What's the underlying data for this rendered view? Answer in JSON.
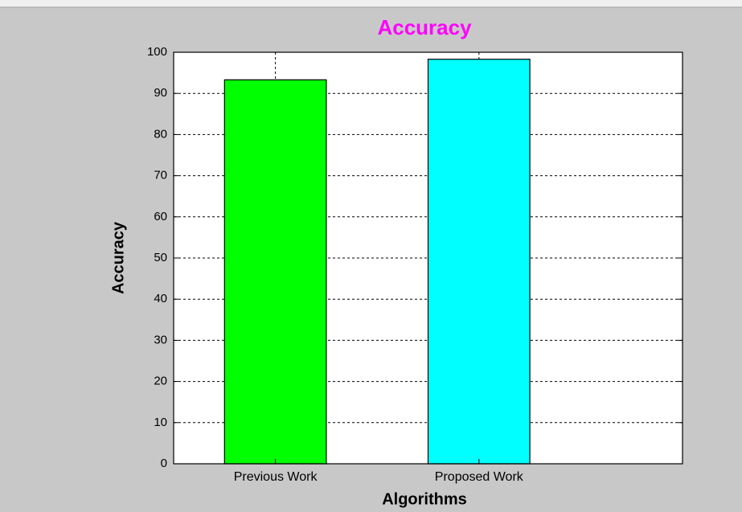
{
  "chart_data": {
    "type": "bar",
    "title": "Accuracy",
    "x_label": "Algorithms",
    "y_label": "Accuracy",
    "categories": [
      "Previous Work",
      "Proposed Work"
    ],
    "values": [
      93.3,
      98.3
    ],
    "colors": [
      "#00ff00",
      "#00ffff"
    ],
    "ylim": [
      0,
      100
    ],
    "yticks": [
      0,
      10,
      20,
      30,
      40,
      50,
      60,
      70,
      80,
      90,
      100
    ],
    "grid": true
  }
}
